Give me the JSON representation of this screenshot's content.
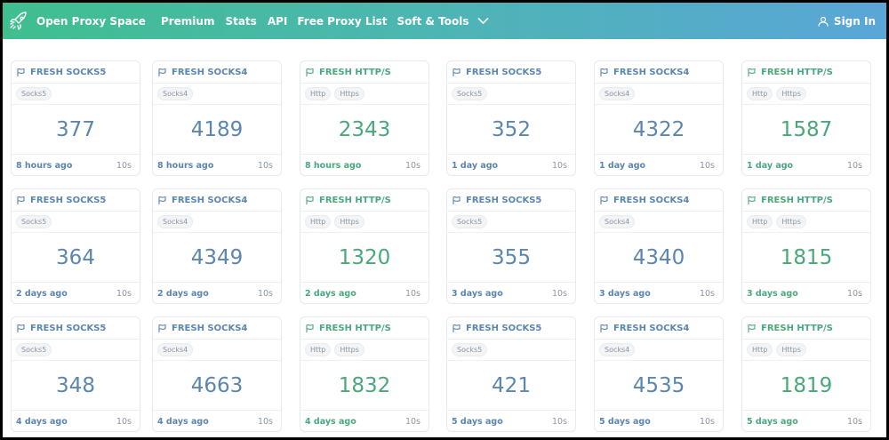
{
  "nav": {
    "brand": "Open Proxy Space",
    "items": [
      "Premium",
      "Stats",
      "API",
      "Free Proxy List",
      "Soft & Tools"
    ],
    "signin": "Sign In"
  },
  "colors": {
    "blue": "#5b86b0",
    "green": "#4aa87a"
  },
  "cards": [
    {
      "title": "FRESH SOCKS5",
      "tags": [
        "Socks5"
      ],
      "count": "377",
      "ago": "8 hours ago",
      "sec": "10s",
      "color": "blue"
    },
    {
      "title": "FRESH SOCKS4",
      "tags": [
        "Socks4"
      ],
      "count": "4189",
      "ago": "8 hours ago",
      "sec": "10s",
      "color": "blue"
    },
    {
      "title": "FRESH HTTP/S",
      "tags": [
        "Http",
        "Https"
      ],
      "count": "2343",
      "ago": "8 hours ago",
      "sec": "10s",
      "color": "green"
    },
    {
      "title": "FRESH SOCKS5",
      "tags": [
        "Socks5"
      ],
      "count": "352",
      "ago": "1 day ago",
      "sec": "10s",
      "color": "blue"
    },
    {
      "title": "FRESH SOCKS4",
      "tags": [
        "Socks4"
      ],
      "count": "4322",
      "ago": "1 day ago",
      "sec": "10s",
      "color": "blue"
    },
    {
      "title": "FRESH HTTP/S",
      "tags": [
        "Http",
        "Https"
      ],
      "count": "1587",
      "ago": "1 day ago",
      "sec": "10s",
      "color": "green"
    },
    {
      "title": "FRESH SOCKS5",
      "tags": [
        "Socks5"
      ],
      "count": "364",
      "ago": "2 days ago",
      "sec": "10s",
      "color": "blue"
    },
    {
      "title": "FRESH SOCKS4",
      "tags": [
        "Socks4"
      ],
      "count": "4349",
      "ago": "2 days ago",
      "sec": "10s",
      "color": "blue"
    },
    {
      "title": "FRESH HTTP/S",
      "tags": [
        "Http",
        "Https"
      ],
      "count": "1320",
      "ago": "2 days ago",
      "sec": "10s",
      "color": "green"
    },
    {
      "title": "FRESH SOCKS5",
      "tags": [
        "Socks5"
      ],
      "count": "355",
      "ago": "3 days ago",
      "sec": "10s",
      "color": "blue"
    },
    {
      "title": "FRESH SOCKS4",
      "tags": [
        "Socks4"
      ],
      "count": "4340",
      "ago": "3 days ago",
      "sec": "10s",
      "color": "blue"
    },
    {
      "title": "FRESH HTTP/S",
      "tags": [
        "Http",
        "Https"
      ],
      "count": "1815",
      "ago": "3 days ago",
      "sec": "10s",
      "color": "green"
    },
    {
      "title": "FRESH SOCKS5",
      "tags": [
        "Socks5"
      ],
      "count": "348",
      "ago": "4 days ago",
      "sec": "10s",
      "color": "blue"
    },
    {
      "title": "FRESH SOCKS4",
      "tags": [
        "Socks4"
      ],
      "count": "4663",
      "ago": "4 days ago",
      "sec": "10s",
      "color": "blue"
    },
    {
      "title": "FRESH HTTP/S",
      "tags": [
        "Http",
        "Https"
      ],
      "count": "1832",
      "ago": "4 days ago",
      "sec": "10s",
      "color": "green"
    },
    {
      "title": "FRESH SOCKS5",
      "tags": [
        "Socks5"
      ],
      "count": "421",
      "ago": "5 days ago",
      "sec": "10s",
      "color": "blue"
    },
    {
      "title": "FRESH SOCKS4",
      "tags": [
        "Socks4"
      ],
      "count": "4535",
      "ago": "5 days ago",
      "sec": "10s",
      "color": "blue"
    },
    {
      "title": "FRESH HTTP/S",
      "tags": [
        "Http",
        "Https"
      ],
      "count": "1819",
      "ago": "5 days ago",
      "sec": "10s",
      "color": "green"
    }
  ]
}
